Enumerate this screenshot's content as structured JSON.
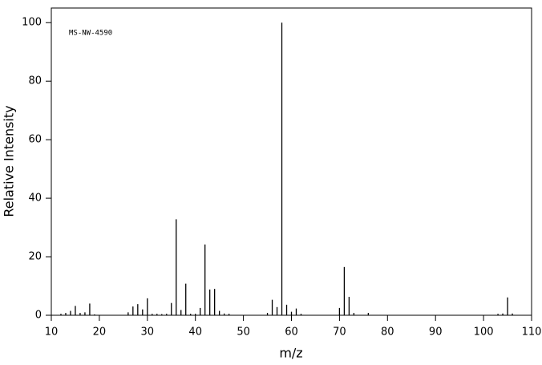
{
  "chart_data": {
    "type": "stem",
    "annotation": "MS-NW-4590",
    "x_label": "m/z",
    "y_label": "Relative Intensity",
    "color": "#000000",
    "x": [
      12,
      13,
      14,
      15,
      16,
      17,
      18,
      19,
      26,
      27,
      28,
      29,
      30,
      31,
      32,
      33,
      34,
      35,
      36,
      37,
      38,
      39,
      40,
      41,
      42,
      43,
      44,
      45,
      46,
      47,
      55,
      56,
      57,
      58,
      59,
      60,
      61,
      62,
      70,
      71,
      72,
      73,
      76,
      103,
      104,
      105,
      106
    ],
    "values": [
      0.5,
      0.8,
      1.5,
      3.2,
      0.8,
      1.0,
      4.0,
      0.3,
      1.0,
      3.0,
      3.8,
      2.0,
      5.8,
      0.5,
      0.5,
      0.4,
      0.5,
      4.2,
      32.8,
      1.8,
      10.8,
      0.5,
      0.5,
      2.5,
      24.2,
      8.8,
      9.0,
      1.5,
      0.6,
      0.5,
      0.8,
      5.3,
      2.8,
      100,
      3.6,
      1.2,
      2.3,
      0.5,
      2.5,
      16.5,
      6.3,
      0.8,
      0.8,
      0.5,
      0.6,
      6.1,
      0.6
    ],
    "xlim": [
      10,
      110
    ],
    "ylim": [
      0,
      105
    ],
    "xticks": [
      10,
      20,
      30,
      40,
      50,
      60,
      70,
      80,
      90,
      100,
      110
    ],
    "yticks": [
      0,
      20,
      40,
      60,
      80,
      100
    ]
  }
}
